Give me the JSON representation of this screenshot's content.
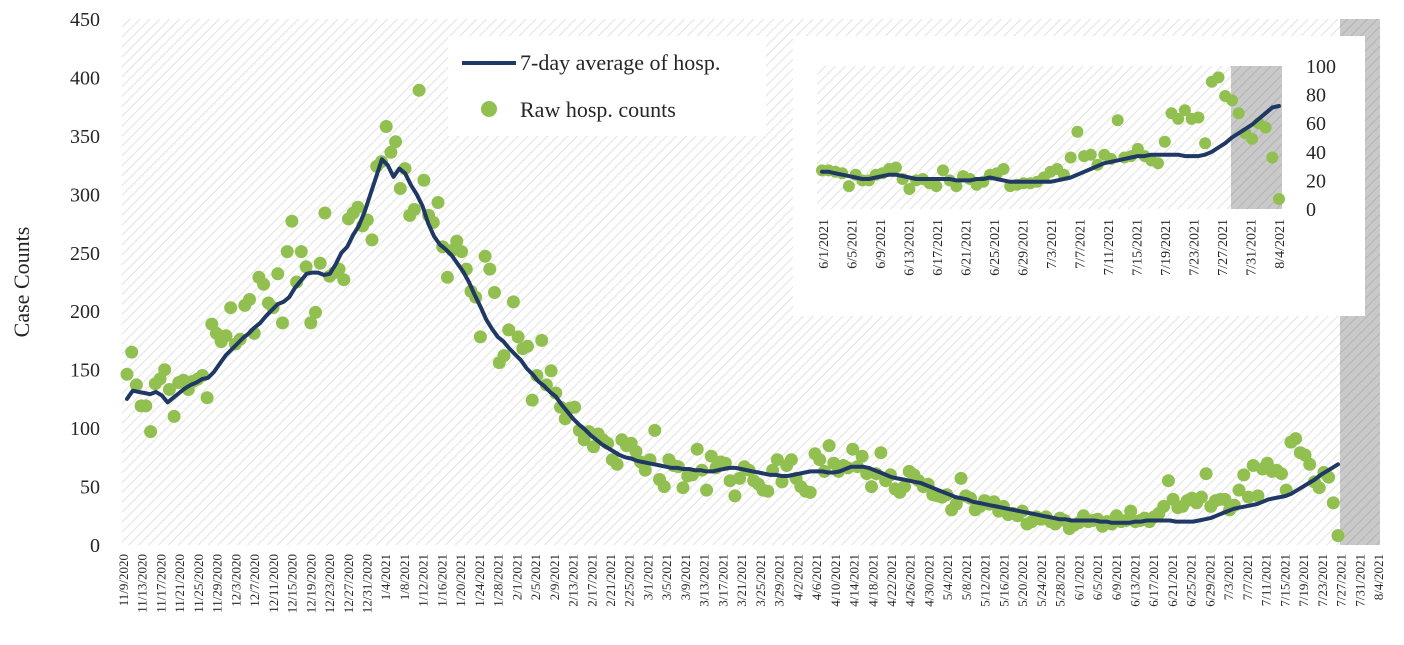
{
  "chart_data": [
    {
      "type": "line",
      "title": "",
      "xlabel": "",
      "ylabel": "Case Counts",
      "ylim": [
        0,
        450
      ],
      "y_ticks": [
        "0",
        "50",
        "100",
        "150",
        "200",
        "250",
        "300",
        "350",
        "400",
        "450"
      ],
      "x_tick_labels": [
        "11/9/2020",
        "11/13/2020",
        "11/17/2020",
        "11/21/2020",
        "11/25/2020",
        "11/29/2020",
        "12/3/2020",
        "12/7/2020",
        "12/11/2020",
        "12/15/2020",
        "12/19/2020",
        "12/23/2020",
        "12/27/2020",
        "12/31/2020",
        "1/4/2021",
        "1/8/2021",
        "1/12/2021",
        "1/16/2021",
        "1/20/2021",
        "1/24/2021",
        "1/28/2021",
        "2/1/2021",
        "2/5/2021",
        "2/9/2021",
        "2/13/2021",
        "2/17/2021",
        "2/21/2021",
        "2/25/2021",
        "3/1/2021",
        "3/5/2021",
        "3/9/2021",
        "3/13/2021",
        "3/17/2021",
        "3/21/2021",
        "3/25/2021",
        "3/29/2021",
        "4/2/2021",
        "4/6/2021",
        "4/10/2021",
        "4/14/2021",
        "4/18/2021",
        "4/22/2021",
        "4/26/2021",
        "4/30/2021",
        "5/4/2021",
        "5/8/2021",
        "5/12/2021",
        "5/16/2021",
        "5/20/2021",
        "5/24/2021",
        "5/28/2021",
        "6/1/2021",
        "6/5/2021",
        "6/9/2021",
        "6/13/2021",
        "6/17/2021",
        "6/21/2021",
        "6/25/2021",
        "6/29/2021",
        "7/3/2021",
        "7/7/2021",
        "7/11/2021",
        "7/15/2021",
        "7/19/2021",
        "7/23/2021",
        "7/27/2021",
        "7/31/2021",
        "8/4/2021"
      ],
      "grid": false,
      "legend_position": "top-center",
      "shaded_region": {
        "from": "7/28/2021",
        "to": "8/4/2021"
      },
      "colors": {
        "average_line": "#1f3864",
        "raw_points": "#92c050",
        "shade": "#d2d2d2"
      },
      "series": [
        {
          "name": "7-day average of hosp.",
          "type": "line",
          "values": [
            125,
            132,
            131,
            130,
            129,
            131,
            128,
            122,
            126,
            130,
            134,
            137,
            139,
            142,
            143,
            148,
            155,
            162,
            167,
            172,
            177,
            181,
            186,
            190,
            196,
            201,
            206,
            208,
            212,
            220,
            226,
            232,
            233,
            233,
            231,
            232,
            240,
            250,
            255,
            265,
            273,
            285,
            300,
            315,
            330,
            325,
            315,
            322,
            318,
            308,
            300,
            290,
            275,
            264,
            257,
            253,
            248,
            241,
            234,
            225,
            214,
            204,
            193,
            185,
            178,
            174,
            168,
            163,
            158,
            151,
            146,
            140,
            136,
            131,
            127,
            120,
            114,
            108,
            103,
            99,
            94,
            90,
            86,
            83,
            80,
            77,
            75,
            74,
            72,
            71,
            70,
            69,
            68,
            67,
            66,
            66,
            65,
            65,
            64,
            64,
            63,
            63,
            64,
            65,
            66,
            66,
            65,
            64,
            63,
            62,
            61,
            60,
            60,
            59,
            59,
            60,
            61,
            62,
            63,
            63,
            63,
            62,
            62,
            63,
            65,
            67,
            67,
            67,
            66,
            64,
            62,
            60,
            58,
            57,
            56,
            55,
            54,
            53,
            51,
            49,
            47,
            45,
            43,
            41,
            40,
            39,
            37,
            36,
            35,
            34,
            33,
            32,
            31,
            30,
            29,
            28,
            27,
            26,
            25,
            24,
            23,
            22,
            22,
            21,
            21,
            21,
            21,
            21,
            20,
            20,
            19,
            19,
            19,
            19,
            20,
            20,
            21,
            21,
            21,
            21,
            21,
            20,
            20,
            20,
            20,
            21,
            22,
            23,
            25,
            27,
            29,
            31,
            32,
            33,
            34,
            35,
            37,
            39,
            40,
            41,
            42,
            44,
            47,
            50,
            53,
            56,
            60,
            63,
            66,
            69
          ]
        },
        {
          "name": "Raw hosp. counts",
          "type": "scatter",
          "values": [
            146,
            165,
            137,
            119,
            119,
            97,
            138,
            142,
            150,
            133,
            110,
            139,
            141,
            133,
            140,
            142,
            145,
            126,
            189,
            181,
            174,
            179,
            203,
            172,
            176,
            205,
            210,
            181,
            229,
            223,
            207,
            203,
            232,
            190,
            251,
            277,
            225,
            251,
            238,
            190,
            199,
            241,
            284,
            230,
            233,
            236,
            227,
            279,
            284,
            289,
            273,
            278,
            261,
            324,
            328,
            358,
            336,
            345,
            305,
            322,
            282,
            287,
            389,
            312,
            282,
            276,
            293,
            255,
            229,
            252,
            260,
            251,
            236,
            217,
            212,
            178,
            247,
            236,
            216,
            156,
            162,
            184,
            208,
            178,
            168,
            170,
            124,
            145,
            175,
            137,
            149,
            130,
            118,
            108,
            117,
            118,
            98,
            90,
            97,
            84,
            95,
            90,
            87,
            73,
            69,
            90,
            85,
            87,
            80,
            71,
            64,
            73,
            98,
            56,
            50,
            73,
            68,
            67,
            49,
            59,
            60,
            82,
            64,
            47,
            76,
            66,
            71,
            70,
            55,
            42,
            57,
            67,
            64,
            55,
            52,
            47,
            46,
            64,
            73,
            54,
            68,
            73,
            57,
            50,
            46,
            45,
            78,
            73,
            63,
            85,
            70,
            63,
            68,
            66,
            82,
            67,
            76,
            61,
            50,
            61,
            79,
            55,
            60,
            48,
            45,
            50,
            63,
            60,
            55,
            50,
            52,
            43,
            42,
            41,
            43,
            30,
            35,
            57,
            42,
            40,
            30,
            33,
            38,
            35,
            37,
            29,
            33,
            26,
            27,
            25,
            29,
            18,
            20,
            24,
            22,
            24,
            20,
            18,
            23,
            21,
            14,
            17,
            19,
            25,
            20,
            21,
            22,
            16,
            20,
            18,
            25,
            20,
            21,
            29,
            20,
            21,
            23,
            20,
            24,
            27,
            33,
            55,
            39,
            32,
            33,
            38,
            40,
            36,
            41,
            61,
            33,
            38,
            39,
            39,
            30,
            34,
            47,
            60,
            41,
            68,
            42,
            65,
            70,
            63,
            64,
            61,
            47,
            88,
            91,
            79,
            77,
            69,
            54,
            49,
            62,
            58,
            36,
            8
          ]
        }
      ]
    },
    {
      "type": "line",
      "title": "",
      "xlabel": "",
      "ylabel": "",
      "ylim": [
        0,
        100
      ],
      "y_ticks": [
        "0",
        "20",
        "40",
        "60",
        "80",
        "100"
      ],
      "y_axis_side": "right",
      "x_tick_labels": [
        "6/1/2021",
        "6/5/2021",
        "6/9/2021",
        "6/13/2021",
        "6/17/2021",
        "6/21/2021",
        "6/25/2021",
        "6/29/2021",
        "7/3/2021",
        "7/7/2021",
        "7/11/2021",
        "7/15/2021",
        "7/19/2021",
        "7/23/2021",
        "7/27/2021",
        "7/31/2021",
        "8/4/2021"
      ],
      "grid": false,
      "shaded_region": {
        "from": "7/28/2021",
        "to": "8/4/2021"
      },
      "series": [
        {
          "name": "7-day average of hosp.",
          "type": "line",
          "values": [
            26,
            26,
            25,
            24,
            23,
            22,
            21,
            21,
            22,
            23,
            24,
            24,
            23,
            22,
            21,
            21,
            21,
            21,
            21,
            21,
            20,
            20,
            20,
            21,
            21,
            22,
            21,
            20,
            19,
            19,
            19,
            19,
            19,
            19,
            19,
            20,
            21,
            22,
            24,
            26,
            28,
            30,
            32,
            33,
            34,
            35,
            36,
            37,
            37,
            38,
            38,
            38,
            38,
            38,
            37,
            37,
            37,
            38,
            40,
            43,
            46,
            50,
            53,
            56,
            59,
            63,
            67,
            71,
            72
          ]
        },
        {
          "name": "Raw hosp. counts",
          "type": "scatter",
          "values": [
            27,
            27,
            26,
            25,
            16,
            24,
            20,
            20,
            24,
            25,
            28,
            29,
            21,
            14,
            20,
            21,
            18,
            16,
            27,
            20,
            16,
            23,
            21,
            17,
            19,
            24,
            25,
            28,
            16,
            17,
            18,
            18,
            19,
            22,
            26,
            28,
            24,
            36,
            54,
            37,
            38,
            31,
            38,
            35,
            62,
            36,
            37,
            42,
            37,
            34,
            32,
            47,
            67,
            63,
            69,
            63,
            64,
            46,
            89,
            92,
            79,
            76,
            67,
            53,
            49,
            60,
            57,
            36,
            7
          ]
        }
      ]
    }
  ]
}
